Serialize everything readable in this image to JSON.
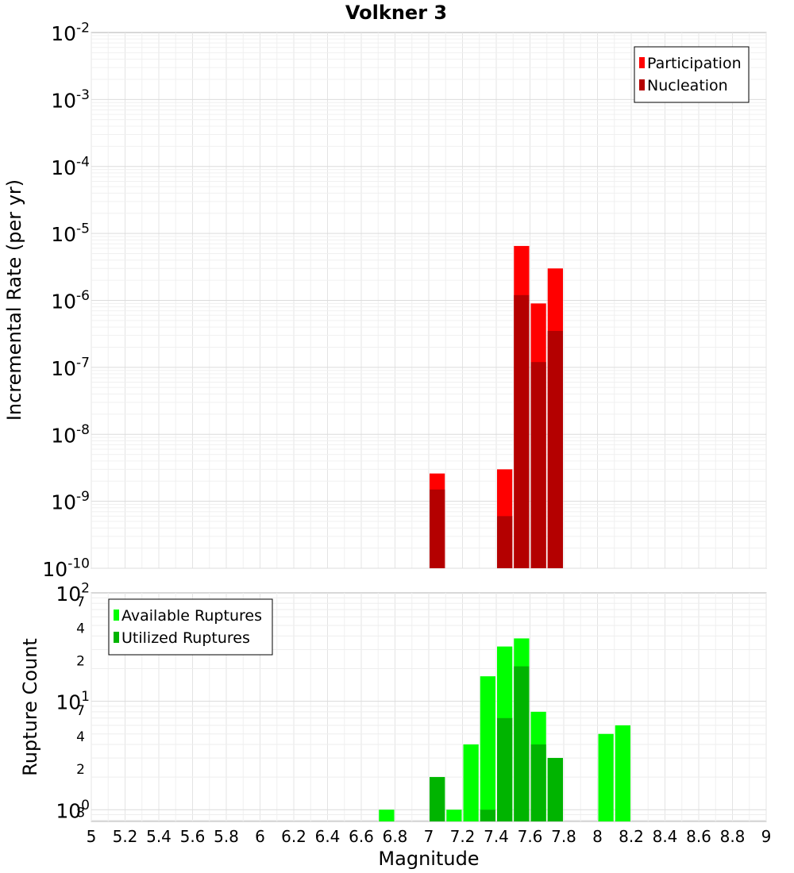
{
  "title": "Volkner 3",
  "chart_data": [
    {
      "type": "bar",
      "ylabel": "Incremental Rate (per yr)",
      "yscale": "log",
      "ylim": [
        1e-10,
        0.01
      ],
      "xlim": [
        5,
        9
      ],
      "y_ticks": [
        {
          "base": "10",
          "exp": "-10"
        },
        {
          "base": "10",
          "exp": "-9"
        },
        {
          "base": "10",
          "exp": "-8"
        },
        {
          "base": "10",
          "exp": "-7"
        },
        {
          "base": "10",
          "exp": "-6"
        },
        {
          "base": "10",
          "exp": "-5"
        },
        {
          "base": "10",
          "exp": "-4"
        },
        {
          "base": "10",
          "exp": "-3"
        },
        {
          "base": "10",
          "exp": "-2"
        }
      ],
      "legend": {
        "position": "top-right",
        "entries": [
          "Participation",
          "Nucleation"
        ]
      },
      "series": [
        {
          "name": "Participation",
          "color": "#ff0000",
          "x": [
            7.05,
            7.45,
            7.55,
            7.65,
            7.75
          ],
          "values": [
            2.6e-09,
            3e-09,
            6.5e-06,
            9e-07,
            3e-06
          ]
        },
        {
          "name": "Nucleation",
          "color": "#b40000",
          "x": [
            7.05,
            7.45,
            7.55,
            7.65,
            7.75
          ],
          "values": [
            1.5e-09,
            6e-10,
            1.2e-06,
            1.2e-07,
            3.5e-07
          ]
        }
      ]
    },
    {
      "type": "bar",
      "xlabel": "Magnitude",
      "ylabel": "Rupture Count",
      "yscale": "log",
      "ylim": [
        0.78,
        100
      ],
      "xlim": [
        5,
        9
      ],
      "x_ticks": [
        "5",
        "5.2",
        "5.4",
        "5.6",
        "5.8",
        "6",
        "6.2",
        "6.4",
        "6.6",
        "6.8",
        "7",
        "7.2",
        "7.4",
        "7.6",
        "7.8",
        "8",
        "8.2",
        "8.4",
        "8.6",
        "8.8",
        "9"
      ],
      "y_ticks": [
        {
          "value": 1,
          "base": "10",
          "exp": "0"
        },
        {
          "value": 10,
          "base": "10",
          "exp": "1"
        },
        {
          "value": 100,
          "base": "10",
          "exp": "2"
        }
      ],
      "y_minor_ticks": [
        {
          "value": 0.8,
          "label": "8"
        },
        {
          "value": 2,
          "label": "2"
        },
        {
          "value": 4,
          "label": "4"
        },
        {
          "value": 7,
          "label": "7"
        },
        {
          "value": 20,
          "label": "2"
        },
        {
          "value": 40,
          "label": "4"
        },
        {
          "value": 70,
          "label": "7"
        }
      ],
      "legend": {
        "position": "top-left",
        "entries": [
          "Available Ruptures",
          "Utilized Ruptures"
        ]
      },
      "series": [
        {
          "name": "Available Ruptures",
          "color": "#00ff00",
          "x": [
            6.75,
            7.05,
            7.15,
            7.25,
            7.35,
            7.45,
            7.55,
            7.65,
            7.75,
            8.05,
            8.15
          ],
          "values": [
            1,
            2,
            1,
            4,
            17,
            32,
            38,
            8,
            3,
            5,
            6
          ]
        },
        {
          "name": "Utilized Ruptures",
          "color": "#00b400",
          "x": [
            7.05,
            7.35,
            7.45,
            7.55,
            7.65,
            7.75
          ],
          "values": [
            2,
            1,
            7,
            21,
            4,
            3
          ]
        }
      ]
    }
  ]
}
